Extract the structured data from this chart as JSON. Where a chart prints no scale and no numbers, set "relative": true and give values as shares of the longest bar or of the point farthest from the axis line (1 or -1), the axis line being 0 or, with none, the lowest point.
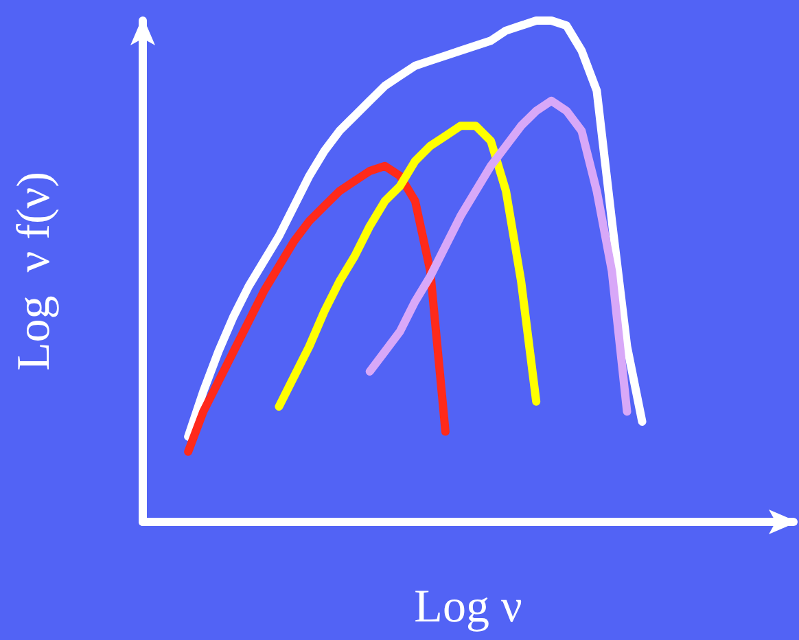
{
  "chart_data": {
    "type": "line",
    "relative": true,
    "xlabel": "Log ν",
    "ylabel": "Log  ν f(ν)",
    "marker": "none",
    "grid": false,
    "categories": [
      null,
      null,
      null,
      null,
      null,
      null,
      null,
      null,
      null,
      null,
      null,
      null,
      null,
      null,
      null,
      null,
      null,
      null,
      null,
      null,
      null,
      null,
      null,
      null,
      null,
      null,
      null,
      null,
      null,
      null,
      null,
      null,
      null,
      null,
      null,
      null,
      null,
      null,
      null,
      null,
      null,
      null,
      null,
      null
    ],
    "series": [
      {
        "color": "#ffffff",
        "values": [
          null,
          null,
          null,
          0.17,
          0.26,
          0.34,
          0.41,
          0.47,
          0.52,
          0.57,
          0.63,
          0.69,
          0.74,
          0.78,
          0.81,
          0.84,
          0.87,
          0.89,
          0.91,
          0.92,
          0.93,
          0.94,
          0.95,
          0.96,
          0.98,
          0.99,
          1.0,
          1.0,
          0.99,
          0.94,
          0.86,
          0.6,
          0.35,
          0.2,
          null,
          null,
          null,
          null,
          null,
          null,
          null,
          null,
          null,
          null
        ]
      },
      {
        "color": "#ff2a1a",
        "values": [
          null,
          null,
          null,
          0.14,
          0.22,
          0.28,
          0.34,
          0.4,
          0.46,
          0.51,
          0.56,
          0.6,
          0.63,
          0.66,
          0.68,
          0.7,
          0.71,
          0.69,
          0.64,
          0.5,
          0.18,
          null,
          null,
          null,
          null,
          null,
          null,
          null,
          null,
          null,
          null,
          null,
          null,
          null,
          null,
          null,
          null,
          null,
          null,
          null,
          null,
          null,
          null,
          null
        ]
      },
      {
        "color": "#ffff00",
        "values": [
          null,
          null,
          null,
          null,
          null,
          null,
          null,
          null,
          null,
          0.23,
          0.29,
          0.35,
          0.42,
          0.48,
          0.53,
          0.59,
          0.64,
          0.67,
          0.72,
          0.75,
          0.77,
          0.79,
          0.79,
          0.76,
          0.66,
          0.48,
          0.24,
          null,
          null,
          null,
          null,
          null,
          null,
          null,
          null,
          null,
          null,
          null,
          null,
          null,
          null,
          null,
          null,
          null
        ]
      },
      {
        "color": "#d8a8f8",
        "values": [
          null,
          null,
          null,
          null,
          null,
          null,
          null,
          null,
          null,
          null,
          null,
          null,
          null,
          null,
          null,
          0.3,
          0.34,
          0.38,
          0.44,
          0.49,
          0.55,
          0.61,
          0.66,
          0.71,
          0.75,
          0.79,
          0.82,
          0.84,
          0.82,
          0.78,
          0.66,
          0.5,
          0.22,
          null,
          null,
          null,
          null,
          null,
          null,
          null,
          null,
          null,
          null,
          null
        ]
      }
    ]
  }
}
